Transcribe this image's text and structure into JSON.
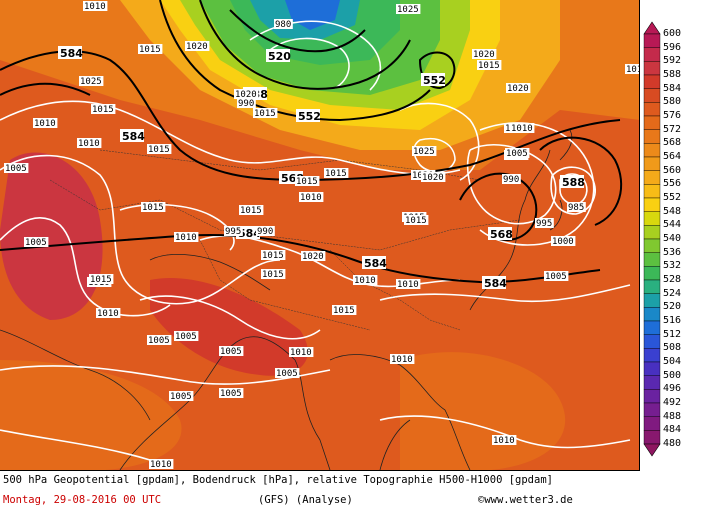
{
  "caption": {
    "line1": "500 hPa Geopotential [gpdam], Bodendruck [hPa], relative Topographie H500-H1000 [gpdam]",
    "date": "Montag, 29-08-2016  00 UTC",
    "model": "(GFS)  (Analyse)",
    "credit": "©www.wetter3.de"
  },
  "legend": {
    "values": [
      "600",
      "596",
      "592",
      "588",
      "584",
      "580",
      "576",
      "572",
      "568",
      "564",
      "560",
      "556",
      "552",
      "548",
      "544",
      "540",
      "536",
      "532",
      "528",
      "524",
      "520",
      "516",
      "512",
      "508",
      "504",
      "500",
      "496",
      "492",
      "488",
      "484",
      "480"
    ],
    "colors": [
      "#b71955",
      "#c42a4b",
      "#cb3640",
      "#d23a2a",
      "#d84b22",
      "#de5a1e",
      "#e46a1a",
      "#e8781a",
      "#ec8a1a",
      "#f09a1a",
      "#f4aa1a",
      "#f7bc17",
      "#f9d012",
      "#d8d80e",
      "#a8d020",
      "#80c830",
      "#5cc040",
      "#3cb858",
      "#2ab080",
      "#1ca0a8",
      "#1a88c8",
      "#1e6ed8",
      "#2a56d8",
      "#3a40d0",
      "#4830c0",
      "#5a28b0",
      "#6a22a0",
      "#761e90",
      "#801a80",
      "#88186e",
      "#8e1660"
    ]
  },
  "map_labels": {
    "geopotential": [
      "584",
      "584",
      "520",
      "538",
      "552",
      "552",
      "568",
      "584",
      "584",
      "584",
      "568",
      "588"
    ],
    "pressure": [
      "1010",
      "1015",
      "1020",
      "1025",
      "1015",
      "1015",
      "1010",
      "1005",
      "1015",
      "1010",
      "1015",
      "995",
      "990",
      "1005",
      "1010",
      "1015",
      "1010",
      "1005",
      "1010",
      "1005",
      "1005",
      "1005",
      "1005",
      "1005",
      "1010",
      "1010",
      "1010",
      "1010",
      "1010",
      "1020",
      "1015",
      "1015",
      "1015",
      "1010",
      "1020",
      "1015",
      "1025",
      "1020",
      "1010",
      "1020",
      "1000",
      "1005",
      "1015",
      "995",
      "990",
      "1000",
      "1005",
      "985",
      "1010",
      "1015",
      "1015",
      "1015",
      "1020",
      "1015",
      "1010",
      "980",
      "990",
      "1025",
      "1020",
      "1010"
    ]
  }
}
